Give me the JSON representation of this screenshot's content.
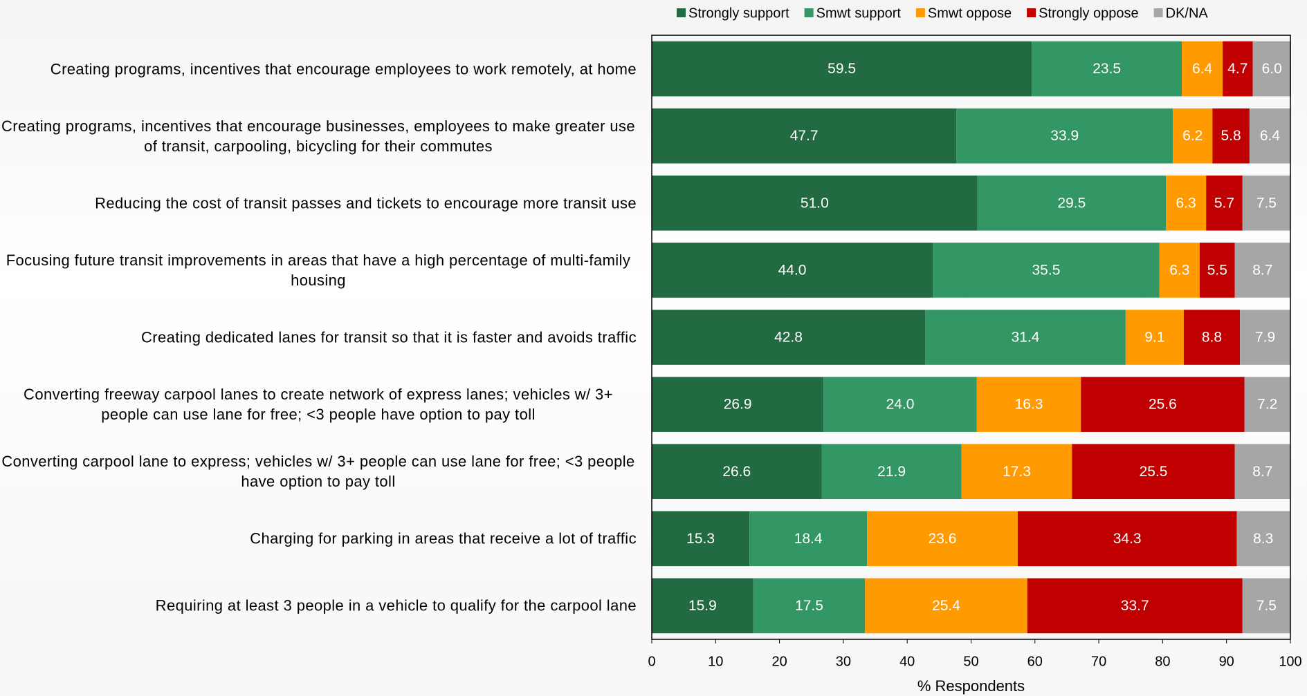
{
  "chart_data": {
    "type": "stacked_barh",
    "categories": [
      "Creating programs, incentives that encourage employees to work remotely, at home",
      "Creating programs, incentives that encourage businesses, employees to make greater use of transit, carpooling, bicycling for their commutes",
      "Reducing the cost of transit passes and tickets to encourage more transit use",
      "Focusing future transit improvements in areas that have a high percentage of multi-family housing",
      "Creating dedicated lanes for transit so that it is faster and avoids traffic",
      "Converting freeway carpool lanes to create network of express lanes; vehicles w/ 3+ people can use lane for free; <3 people have option to pay toll",
      "Converting carpool lane to express; vehicles w/ 3+ people can use lane for free; <3 people have option to pay toll",
      "Charging for parking in areas that receive a lot of traffic",
      "Requiring at least 3 people in a vehicle to qualify for the carpool lane"
    ],
    "series": [
      {
        "name": "Strongly support",
        "color": "#226b42",
        "values": [
          59.5,
          47.7,
          51.0,
          44.0,
          42.8,
          26.9,
          26.6,
          15.3,
          15.9
        ],
        "value_labels": [
          "59.5",
          "47.7",
          "51.0",
          "44.0",
          "42.8",
          "26.9",
          "26.6",
          "15.3",
          "15.9"
        ]
      },
      {
        "name": "Smwt support",
        "color": "#339665",
        "values": [
          23.5,
          33.9,
          29.5,
          35.5,
          31.4,
          24.0,
          21.9,
          18.4,
          17.5
        ],
        "value_labels": [
          "23.5",
          "33.9",
          "29.5",
          "35.5",
          "31.4",
          "24.0",
          "21.9",
          "18.4",
          "17.5"
        ]
      },
      {
        "name": "Smwt oppose",
        "color": "#ff9a00",
        "values": [
          6.4,
          6.2,
          6.3,
          6.3,
          9.1,
          16.3,
          17.3,
          23.6,
          25.4
        ],
        "value_labels": [
          "6.4",
          "6.2",
          "6.3",
          "6.3",
          "9.1",
          "16.3",
          "17.3",
          "23.6",
          "25.4"
        ]
      },
      {
        "name": "Strongly oppose",
        "color": "#c00000",
        "values": [
          4.7,
          5.8,
          5.7,
          5.5,
          8.8,
          25.6,
          25.5,
          34.3,
          33.7
        ],
        "value_labels": [
          "4.7",
          "5.8",
          "5.7",
          "5.5",
          "8.8",
          "25.6",
          "25.5",
          "34.3",
          "33.7"
        ]
      },
      {
        "name": "DK/NA",
        "color": "#a6a6a6",
        "values": [
          6.0,
          6.4,
          7.5,
          8.7,
          7.9,
          7.2,
          8.7,
          8.3,
          7.5
        ],
        "value_labels": [
          "6.0",
          "6.4",
          "7.5",
          "8.7",
          "7.9",
          "7.2",
          "8.7",
          "8.3",
          "7.5"
        ]
      }
    ],
    "xlabel": "% Respondents",
    "xlim": [
      0,
      100
    ],
    "xticks": [
      0,
      10,
      20,
      30,
      40,
      50,
      60,
      70,
      80,
      90,
      100
    ],
    "legend": "top"
  }
}
